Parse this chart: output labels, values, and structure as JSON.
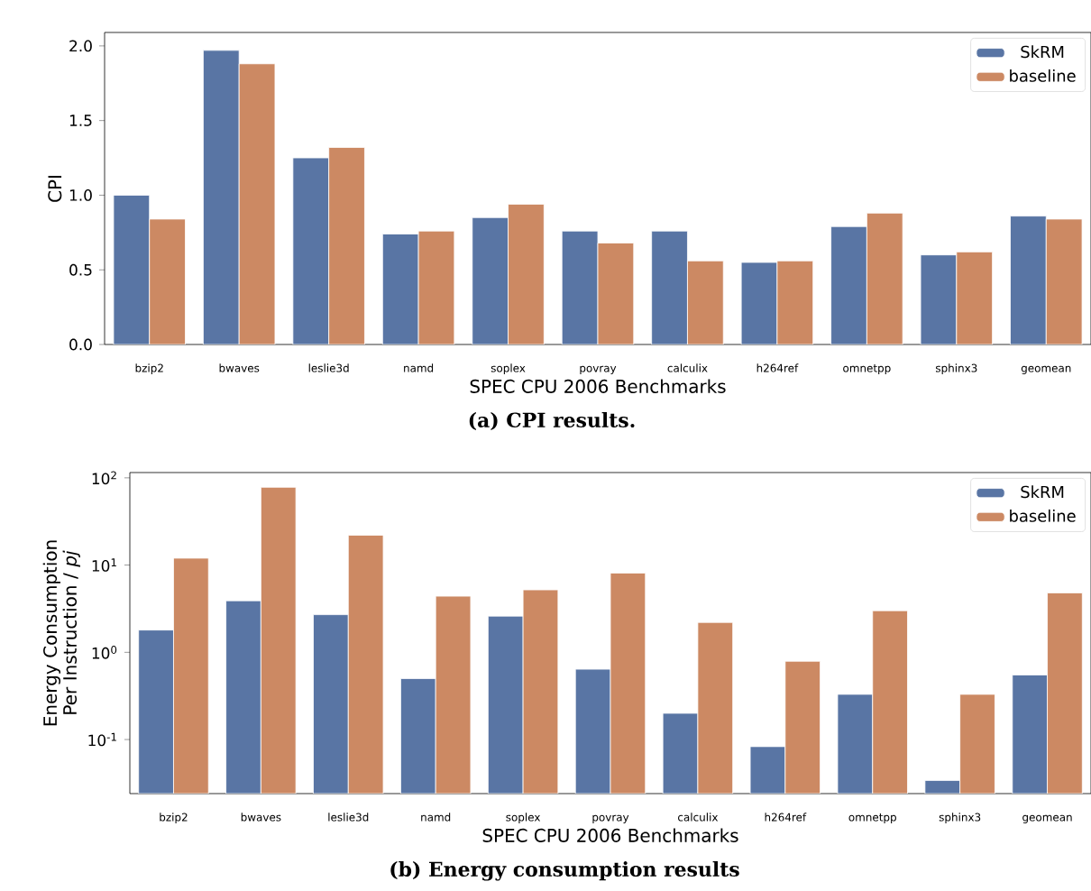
{
  "chart_data": [
    {
      "type": "bar",
      "title": "**(a) CPI results.**",
      "xlabel": "SPEC CPU 2006 Benchmarks",
      "ylabel": "CPI",
      "categories": [
        "bzip2",
        "bwaves",
        "leslie3d",
        "namd",
        "soplex",
        "povray",
        "calculix",
        "h264ref",
        "omnetpp",
        "sphinx3",
        "geomean"
      ],
      "series": [
        {
          "name": "SkRM",
          "color": "#5975a4",
          "values": [
            1.0,
            1.97,
            1.25,
            0.74,
            0.85,
            0.76,
            0.76,
            0.55,
            0.79,
            0.6,
            0.86
          ]
        },
        {
          "name": "baseline",
          "color": "#cc8963",
          "values": [
            0.84,
            1.88,
            1.32,
            0.76,
            0.94,
            0.68,
            0.56,
            0.56,
            0.88,
            0.62,
            0.84
          ]
        }
      ],
      "ylim": [
        0,
        2.09
      ],
      "yticks": [
        {
          "value": 0,
          "label": "0.0"
        },
        0.5,
        {
          "value": 1,
          "label": "1.0"
        },
        1.5,
        {
          "value": 2,
          "label": "2.0"
        }
      ],
      "legend": "top right"
    },
    {
      "type": "bar",
      "title": "**(b) Energy consumption results**",
      "xlabel": "SPEC CPU 2006 Benchmarks",
      "ylabel": "Energy Consumption Per Instruction / *pj*",
      "categories": [
        "bzip2",
        "bwaves",
        "leslie3d",
        "namd",
        "soplex",
        "povray",
        "calculix",
        "h264ref",
        "omnetpp",
        "sphinx3",
        "geomean"
      ],
      "series": [
        {
          "name": "SkRM",
          "color": "#5975a4",
          "values": [
            1.8,
            3.9,
            2.7,
            0.5,
            2.6,
            0.64,
            0.2,
            0.083,
            0.33,
            0.034,
            0.55
          ]
        },
        {
          "name": "baseline",
          "color": "#cc8963",
          "values": [
            12,
            78,
            22,
            4.4,
            5.2,
            8.1,
            2.2,
            0.79,
            3.0,
            0.33,
            4.8
          ]
        }
      ],
      "log": "y",
      "ylim": [
        0.024,
        115
      ],
      "yticks": [
        {
          "value": 0.1,
          "label": "10$^{-1}$"
        },
        {
          "value": 1,
          "label": "10$^{0}$"
        },
        {
          "value": 10,
          "label": "10$^{1}$"
        },
        {
          "value": 100,
          "label": "10$^{2}$"
        }
      ],
      "legend": "top right"
    }
  ]
}
